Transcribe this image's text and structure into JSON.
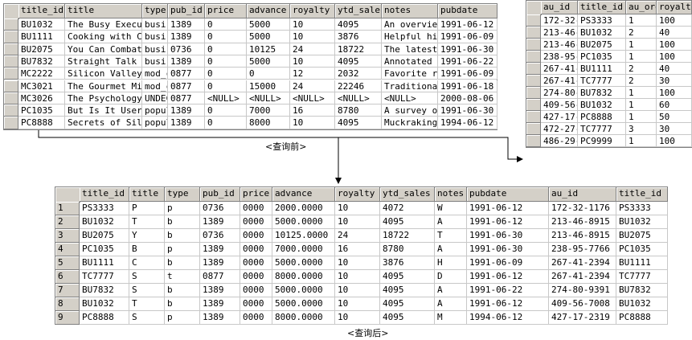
{
  "before": {
    "caption": "<查询前>",
    "titles": {
      "columns": [
        "title_id",
        "title",
        "type",
        "pub_id",
        "price",
        "advance",
        "royalty",
        "ytd_sales",
        "notes",
        "pubdate"
      ],
      "rows": [
        [
          "BU1032",
          "The Busy Execut",
          "busir",
          "1389",
          "0",
          "5000",
          "10",
          "4095",
          "An overview",
          "1991-06-12"
        ],
        [
          "BU1111",
          "Cooking with Co",
          "busir",
          "1389",
          "0",
          "5000",
          "10",
          "3876",
          "Helpful hin",
          "1991-06-09"
        ],
        [
          "BU2075",
          "You Can Combat",
          "busir",
          "0736",
          "0",
          "10125",
          "24",
          "18722",
          "The latest",
          "1991-06-30"
        ],
        [
          "BU7832",
          "Straight Talk A",
          "busir",
          "1389",
          "0",
          "5000",
          "10",
          "4095",
          "Annotated a",
          "1991-06-22"
        ],
        [
          "MC2222",
          "Silicon Valley",
          "mod_c",
          "0877",
          "0",
          "0",
          "12",
          "2032",
          "Favorite re",
          "1991-06-09"
        ],
        [
          "MC3021",
          "The Gourmet Mic",
          "mod_c",
          "0877",
          "0",
          "15000",
          "24",
          "22246",
          "Traditional",
          "1991-06-18"
        ],
        [
          "MC3026",
          "The Psychology",
          "UNDEC",
          "0877",
          "<NULL>",
          "<NULL>",
          "<NULL>",
          "<NULL>",
          "<NULL>",
          "2000-08-06"
        ],
        [
          "PC1035",
          "But Is It User",
          "popul",
          "1389",
          "0",
          "7000",
          "16",
          "8780",
          "A survey of",
          "1991-06-30"
        ],
        [
          "PC8888",
          "Secrets of Sili",
          "popul",
          "1389",
          "0",
          "8000",
          "10",
          "4095",
          "Muckraking",
          "1994-06-12"
        ]
      ]
    },
    "titleauthor": {
      "columns": [
        "au_id",
        "title_id",
        "au_ord",
        "royalty"
      ],
      "rows": [
        [
          "172-32-",
          "PS3333",
          "1",
          "100"
        ],
        [
          "213-46-",
          "BU1032",
          "2",
          "40"
        ],
        [
          "213-46-",
          "BU2075",
          "1",
          "100"
        ],
        [
          "238-95-",
          "PC1035",
          "1",
          "100"
        ],
        [
          "267-41-",
          "BU1111",
          "2",
          "40"
        ],
        [
          "267-41-",
          "TC7777",
          "2",
          "30"
        ],
        [
          "274-80-",
          "BU7832",
          "1",
          "100"
        ],
        [
          "409-56-",
          "BU1032",
          "1",
          "60"
        ],
        [
          "427-17-",
          "PC8888",
          "1",
          "50"
        ],
        [
          "472-27-",
          "TC7777",
          "3",
          "30"
        ],
        [
          "486-29-",
          "PC9999",
          "1",
          "100"
        ]
      ]
    }
  },
  "after": {
    "caption": "<查询后>",
    "result": {
      "columns": [
        "title_id",
        "title",
        "type",
        "pub_id",
        "price",
        "advance",
        "royalty",
        "ytd_sales",
        "notes",
        "pubdate",
        "au_id",
        "title_id"
      ],
      "row_numbers": [
        "1",
        "2",
        "3",
        "4",
        "5",
        "6",
        "7",
        "8",
        "9"
      ],
      "rows": [
        [
          "PS3333",
          "P",
          "p",
          "0736",
          "0000",
          "2000.0000",
          "10",
          "4072",
          "W",
          "1991-06-12",
          "172-32-1176",
          "PS3333"
        ],
        [
          "BU1032",
          "T",
          "b",
          "1389",
          "0000",
          "5000.0000",
          "10",
          "4095",
          "A",
          "1991-06-12",
          "213-46-8915",
          "BU1032"
        ],
        [
          "BU2075",
          "Y",
          "b",
          "0736",
          "0000",
          "10125.0000",
          "24",
          "18722",
          "T",
          "1991-06-30",
          "213-46-8915",
          "BU2075"
        ],
        [
          "PC1035",
          "B",
          "p",
          "1389",
          "0000",
          "7000.0000",
          "16",
          "8780",
          "A",
          "1991-06-30",
          "238-95-7766",
          "PC1035"
        ],
        [
          "BU1111",
          "C",
          "b",
          "1389",
          "0000",
          "5000.0000",
          "10",
          "3876",
          "H",
          "1991-06-09",
          "267-41-2394",
          "BU1111"
        ],
        [
          "TC7777",
          "S",
          "t",
          "0877",
          "0000",
          "8000.0000",
          "10",
          "4095",
          "D",
          "1991-06-12",
          "267-41-2394",
          "TC7777"
        ],
        [
          "BU7832",
          "S",
          "b",
          "1389",
          "0000",
          "5000.0000",
          "10",
          "4095",
          "A",
          "1991-06-22",
          "274-80-9391",
          "BU7832"
        ],
        [
          "BU1032",
          "T",
          "b",
          "1389",
          "0000",
          "5000.0000",
          "10",
          "4095",
          "A",
          "1991-06-12",
          "409-56-7008",
          "BU1032"
        ],
        [
          "PC8888",
          "S",
          "p",
          "1389",
          "0000",
          "8000.0000",
          "10",
          "4095",
          "M",
          "1994-06-12",
          "427-17-2319",
          "PC8888"
        ]
      ]
    }
  }
}
